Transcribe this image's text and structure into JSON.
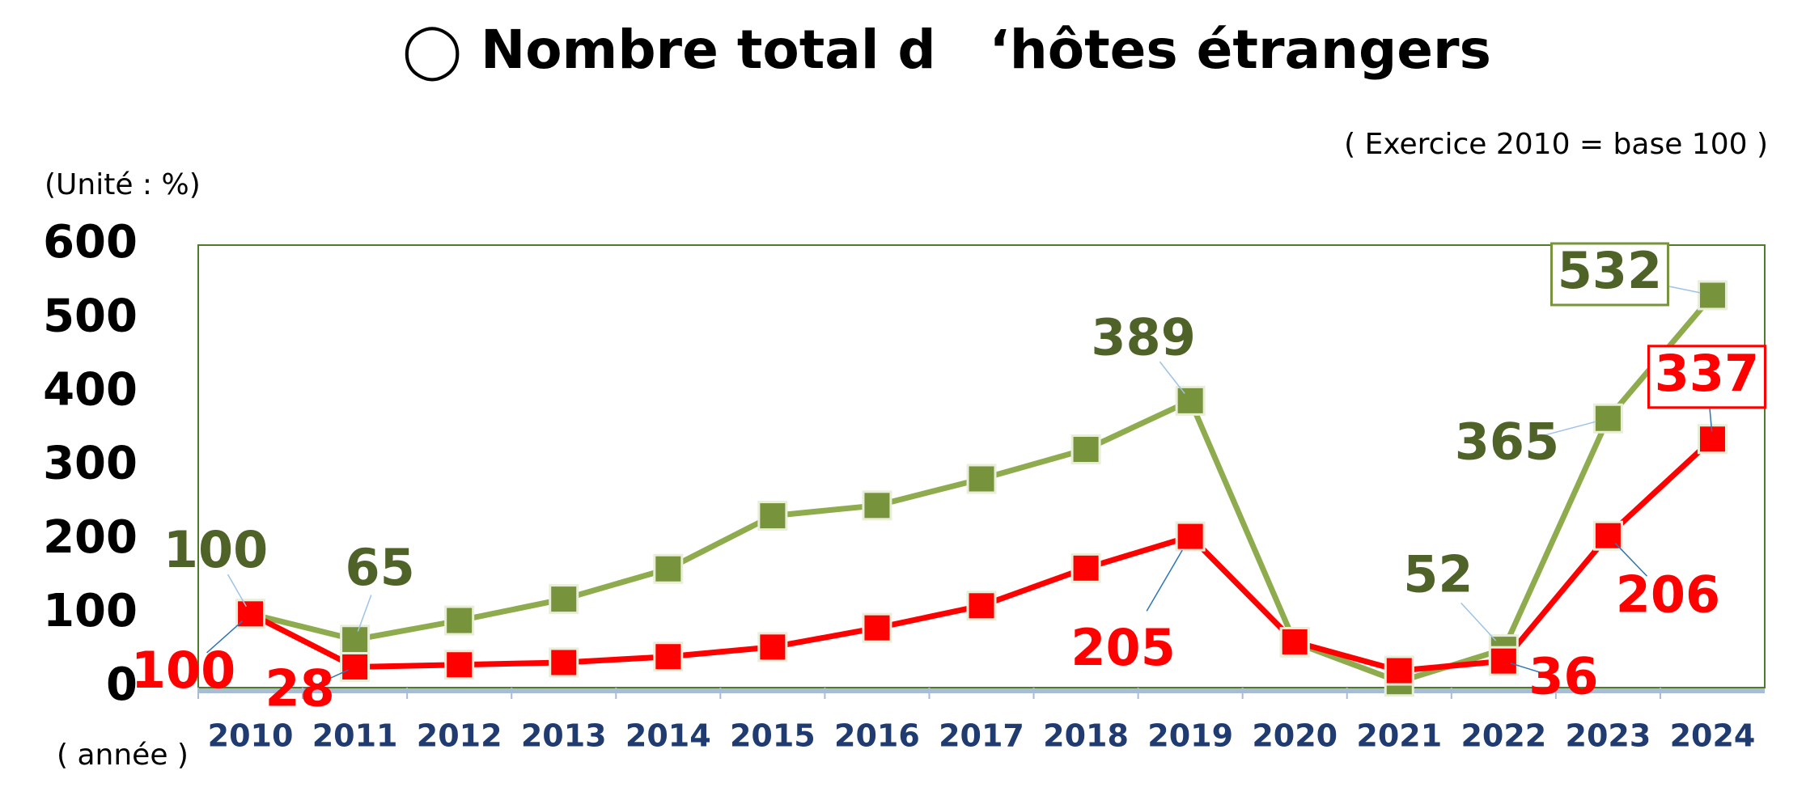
{
  "chart_data": {
    "type": "line",
    "title": "◯ Nombre total d　‘hôtes étrangers",
    "subtitle": "( Exercice 2010 = base 100 )",
    "y_label": "(Unité : %)",
    "x_label": "( année )",
    "categories": [
      "2010",
      "2011",
      "2012",
      "2013",
      "2014",
      "2015",
      "2016",
      "2017",
      "2018",
      "2019",
      "2020",
      "2021",
      "2022",
      "2023",
      "2024"
    ],
    "series": [
      {
        "color": "#8eab4d",
        "marker_color": "#77933c",
        "label_color": "#4f6228",
        "values": [
          100,
          65,
          91,
          120,
          161,
          233,
          247,
          283,
          323,
          389,
          61,
          8,
          52,
          365,
          532
        ]
      },
      {
        "color": "#ff0000",
        "marker_color": "#ff0000",
        "label_color": "#ff0000",
        "values": [
          100,
          28,
          31,
          34,
          42,
          55,
          81,
          111,
          162,
          205,
          62,
          23,
          36,
          206,
          337
        ]
      }
    ],
    "ylim": [
      0,
      600
    ],
    "yticks": [
      0,
      100,
      200,
      300,
      400,
      500,
      600
    ],
    "grid": false
  }
}
